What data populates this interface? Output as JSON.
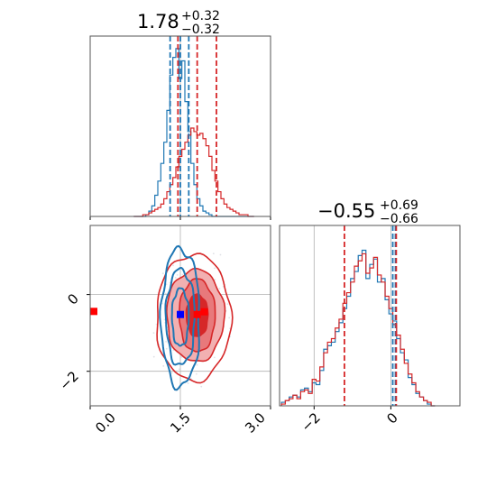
{
  "chart_data": {
    "type": "corner",
    "colors": {
      "blue": "#1f77b4",
      "red": "#d62728",
      "red_light": "#f2b0b1",
      "red_mid": "#e8797b",
      "grid": "#b0b0b0"
    },
    "param1": {
      "title": {
        "main": "1.78",
        "plus": "+0.32",
        "minus": "−0.32"
      },
      "range": [
        0.0,
        3.0
      ],
      "ticks": [
        0.0,
        1.5,
        3.0
      ],
      "tick_labels": [
        "0.0",
        "1.5",
        "3.0"
      ],
      "blue_quantiles": [
        1.33,
        1.5,
        1.64
      ],
      "red_quantiles": [
        1.46,
        1.78,
        2.1
      ],
      "hist_x": [
        0.75,
        0.8,
        0.85,
        0.9,
        0.95,
        1.0,
        1.05,
        1.1,
        1.15,
        1.2,
        1.25,
        1.3,
        1.35,
        1.4,
        1.45,
        1.5,
        1.55,
        1.6,
        1.65,
        1.7,
        1.75,
        1.8,
        1.85,
        1.9,
        1.95,
        2.0,
        2.05,
        2.1,
        2.15,
        2.2,
        2.25,
        2.3,
        2.35,
        2.4,
        2.45,
        2.5,
        2.55,
        2.6,
        2.65,
        2.7
      ],
      "blue_hist": [
        0,
        0,
        0,
        0,
        0.01,
        0.03,
        0.06,
        0.12,
        0.2,
        0.3,
        0.42,
        0.6,
        0.8,
        0.9,
        0.95,
        0.78,
        0.88,
        0.65,
        0.48,
        0.3,
        0.18,
        0.1,
        0.06,
        0.03,
        0.02,
        0.01,
        0,
        0,
        0,
        0,
        0,
        0,
        0,
        0,
        0,
        0,
        0,
        0,
        0,
        0
      ],
      "red_hist": [
        0,
        0,
        0,
        0.01,
        0.01,
        0.02,
        0.03,
        0.04,
        0.05,
        0.07,
        0.1,
        0.14,
        0.18,
        0.22,
        0.28,
        0.34,
        0.38,
        0.42,
        0.46,
        0.5,
        0.48,
        0.46,
        0.47,
        0.44,
        0.4,
        0.34,
        0.26,
        0.2,
        0.14,
        0.1,
        0.07,
        0.05,
        0.04,
        0.03,
        0.02,
        0.01,
        0.01,
        0.01,
        0,
        0
      ]
    },
    "param2": {
      "title": {
        "main": "−0.55",
        "plus": "+0.69",
        "minus": "−0.66"
      },
      "range": [
        -2.9,
        1.8
      ],
      "ticks": [
        -2,
        0
      ],
      "tick_labels": [
        "−2",
        "0"
      ],
      "blue_quantiles": [
        0.05,
        0.12
      ],
      "red_quantiles": [
        -1.21,
        0.14
      ],
      "hist_x": [
        -2.8,
        -2.7,
        -2.6,
        -2.5,
        -2.4,
        -2.3,
        -2.2,
        -2.1,
        -2.0,
        -1.9,
        -1.8,
        -1.7,
        -1.6,
        -1.5,
        -1.4,
        -1.3,
        -1.2,
        -1.1,
        -1.0,
        -0.9,
        -0.8,
        -0.7,
        -0.6,
        -0.5,
        -0.4,
        -0.3,
        -0.2,
        -0.1,
        0.0,
        0.1,
        0.2,
        0.3,
        0.4,
        0.5,
        0.6,
        0.7,
        0.8,
        0.9,
        1.0,
        1.1
      ],
      "blue_hist": [
        0.02,
        0.03,
        0.05,
        0.06,
        0.05,
        0.09,
        0.1,
        0.08,
        0.13,
        0.12,
        0.2,
        0.32,
        0.34,
        0.36,
        0.42,
        0.47,
        0.55,
        0.62,
        0.72,
        0.76,
        0.85,
        0.88,
        0.72,
        0.8,
        0.83,
        0.7,
        0.72,
        0.6,
        0.52,
        0.48,
        0.38,
        0.3,
        0.26,
        0.16,
        0.12,
        0.07,
        0.05,
        0.03,
        0.01,
        0
      ],
      "red_hist": [
        0.01,
        0.03,
        0.04,
        0.06,
        0.04,
        0.08,
        0.09,
        0.07,
        0.15,
        0.14,
        0.22,
        0.3,
        0.36,
        0.38,
        0.44,
        0.49,
        0.58,
        0.64,
        0.7,
        0.79,
        0.82,
        0.86,
        0.75,
        0.78,
        0.84,
        0.74,
        0.7,
        0.62,
        0.55,
        0.46,
        0.4,
        0.32,
        0.24,
        0.18,
        0.13,
        0.08,
        0.05,
        0.03,
        0.02,
        0
      ]
    },
    "scatter_markers": [
      {
        "series": "red",
        "x": 0.06,
        "y": -0.44
      },
      {
        "series": "red",
        "x": 1.9,
        "y": -0.45
      },
      {
        "series": "red",
        "x": 1.78,
        "y": -0.52
      },
      {
        "series": "blue",
        "x": 1.5,
        "y": -0.52
      }
    ],
    "red_contours": [
      {
        "cx": 1.78,
        "cy": -0.55,
        "rx": 0.18,
        "ry": 0.55,
        "fill": "red"
      },
      {
        "cx": 1.78,
        "cy": -0.55,
        "rx": 0.3,
        "ry": 0.95,
        "fill": "red_mid"
      },
      {
        "cx": 1.75,
        "cy": -0.55,
        "rx": 0.48,
        "ry": 1.2,
        "fill": "red_light"
      },
      {
        "cx": 1.72,
        "cy": -0.6,
        "rx": 0.62,
        "ry": 1.65,
        "fill": "none"
      }
    ],
    "blue_contours": [
      {
        "cx": 1.5,
        "cy": -0.6,
        "rx": 0.14,
        "ry": 0.75
      },
      {
        "cx": 1.5,
        "cy": -0.6,
        "rx": 0.24,
        "ry": 1.25
      },
      {
        "cx": 1.5,
        "cy": -0.6,
        "rx": 0.32,
        "ry": 1.8
      }
    ]
  }
}
